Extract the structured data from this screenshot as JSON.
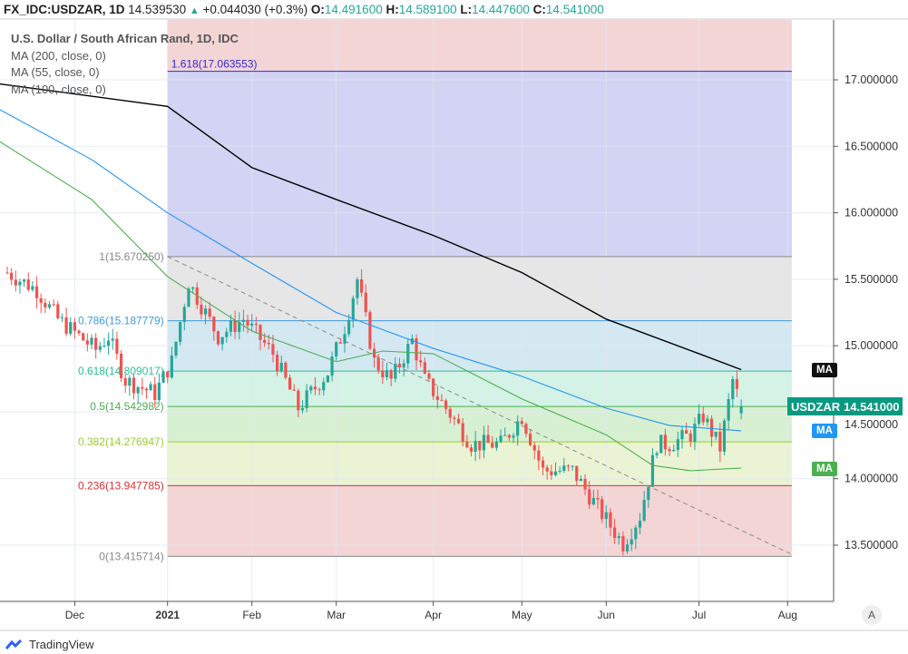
{
  "header": {
    "symbol": "FX_IDC:USDZAR, 1D",
    "last": "14.539530",
    "change": "+0.044030 (+0.3%)",
    "o_label": "O:",
    "o": "14.491600",
    "h_label": "H:",
    "h": "14.589100",
    "l_label": "L:",
    "l": "14.447600",
    "c_label": "C:",
    "c": "14.541000"
  },
  "legend": {
    "title": "U.S. Dollar / South African Rand, 1D, IDC",
    "ma200": "MA (200, close, 0)",
    "ma55": "MA (55, close, 0)",
    "ma100": "MA (100, close, 0)"
  },
  "tags": {
    "ma_label": "MA",
    "symbol": "USDZAR",
    "price": "14.541000"
  },
  "colors": {
    "up": "#26a69a",
    "down": "#ef5350",
    "ma200": "#000000",
    "ma100": "#2196f3",
    "ma55": "#4caf50",
    "accent": "#089981"
  },
  "auto_button": "A",
  "branding": "TradingView",
  "chart_data": {
    "type": "candlestick",
    "title": "U.S. Dollar / South African Rand, 1D, IDC",
    "ylim": [
      12.9,
      17.45
    ],
    "y_ticks": [
      "13.500000",
      "14.000000",
      "14.500000",
      "15.000000",
      "15.500000",
      "16.000000",
      "16.500000",
      "17.000000"
    ],
    "y_tick_values": [
      13.5,
      14.0,
      14.5,
      15.0,
      15.5,
      16.0,
      16.5,
      17.0
    ],
    "x_ticks": [
      "Dec",
      "2021",
      "Feb",
      "Mar",
      "Apr",
      "May",
      "Jun",
      "Jul",
      "Aug"
    ],
    "x_tick_bars": [
      16,
      38,
      58,
      78,
      101,
      122,
      142,
      164,
      185
    ],
    "total_bars": 196,
    "price_anchors": [
      [
        0,
        15.55
      ],
      [
        7,
        15.42
      ],
      [
        12,
        15.2
      ],
      [
        21,
        14.97
      ],
      [
        24,
        15.07
      ],
      [
        28,
        14.74
      ],
      [
        35,
        14.64
      ],
      [
        39,
        14.88
      ],
      [
        43,
        15.48
      ],
      [
        50,
        15.07
      ],
      [
        56,
        15.2
      ],
      [
        63,
        14.94
      ],
      [
        69,
        14.53
      ],
      [
        76,
        14.8
      ],
      [
        80,
        15.14
      ],
      [
        83,
        15.5
      ],
      [
        87,
        14.88
      ],
      [
        91,
        14.74
      ],
      [
        96,
        15.04
      ],
      [
        99,
        14.74
      ],
      [
        104,
        14.53
      ],
      [
        110,
        14.26
      ],
      [
        117,
        14.26
      ],
      [
        122,
        14.47
      ],
      [
        127,
        14.06
      ],
      [
        134,
        14.06
      ],
      [
        140,
        13.78
      ],
      [
        146,
        13.51
      ],
      [
        150,
        13.72
      ],
      [
        154,
        14.26
      ],
      [
        157,
        14.26
      ],
      [
        162,
        14.33
      ],
      [
        165,
        14.47
      ],
      [
        169,
        14.23
      ],
      [
        172,
        14.74
      ],
      [
        174,
        14.54
      ]
    ],
    "series": [
      {
        "name": "MA (200, close, 0)",
        "points": [
          [
            -2,
            16.97
          ],
          [
            38,
            16.8
          ],
          [
            58,
            16.34
          ],
          [
            78,
            16.1
          ],
          [
            101,
            15.83
          ],
          [
            122,
            15.55
          ],
          [
            142,
            15.2
          ],
          [
            164,
            14.94
          ],
          [
            174,
            14.82
          ]
        ]
      },
      {
        "name": "MA (100, close, 0)",
        "points": [
          [
            -2,
            16.78
          ],
          [
            20,
            16.4
          ],
          [
            38,
            16.0
          ],
          [
            58,
            15.62
          ],
          [
            78,
            15.25
          ],
          [
            101,
            14.98
          ],
          [
            122,
            14.77
          ],
          [
            142,
            14.53
          ],
          [
            157,
            14.4
          ],
          [
            174,
            14.36
          ]
        ]
      },
      {
        "name": "MA (55, close, 0)",
        "points": [
          [
            -2,
            16.54
          ],
          [
            20,
            16.1
          ],
          [
            38,
            15.52
          ],
          [
            58,
            15.11
          ],
          [
            78,
            14.88
          ],
          [
            89,
            14.96
          ],
          [
            101,
            14.94
          ],
          [
            122,
            14.6
          ],
          [
            142,
            14.33
          ],
          [
            153,
            14.1
          ],
          [
            162,
            14.06
          ],
          [
            174,
            14.08
          ]
        ]
      }
    ],
    "fibonacci": {
      "start_bar": 38,
      "end_bar": 186,
      "levels": [
        {
          "label": "1.618(17.063553)",
          "value": 17.063553,
          "color": "#2b2bd8",
          "fill": "#d3d3f3"
        },
        {
          "label": "1(15.670250)",
          "value": 15.67025,
          "color": "#888888",
          "fill": "#e6e6e6"
        },
        {
          "label": "0.786(15.187779)",
          "value": 15.187779,
          "color": "#3d9be0",
          "fill": "#d4e8f2"
        },
        {
          "label": "0.618(14.809017)",
          "value": 14.809017,
          "color": "#2bbf90",
          "fill": "#d4f2e6"
        },
        {
          "label": "0.5(14.542982)",
          "value": 14.542982,
          "color": "#4caf50",
          "fill": "#d8f0d2"
        },
        {
          "label": "0.382(14.276947)",
          "value": 14.276947,
          "color": "#9acd32",
          "fill": "#ebf3d5"
        },
        {
          "label": "0.236(13.947785)",
          "value": 13.947785,
          "color": "#e03030",
          "fill": "#f3d5d5"
        },
        {
          "label": "0(13.415714)",
          "value": 13.415714,
          "color": "#888888",
          "fill": "#f3d5d5"
        }
      ],
      "top_fill": "#f4d5d5"
    },
    "trendline": [
      [
        38,
        15.67
      ],
      [
        186,
        13.43
      ]
    ]
  }
}
